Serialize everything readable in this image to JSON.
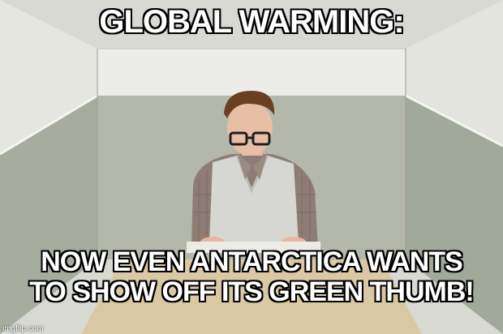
{
  "meme": {
    "top_text": "GLOBAL WARMING:",
    "bottom_text_line1": "NOW EVEN ANTARCTICA WANTS",
    "bottom_text_line2": "TO SHOW OFF ITS GREEN THUMB!",
    "watermark": "imgflip.com"
  },
  "colors": {
    "wall_upper": "#e7e7e2",
    "wall_lower": "#a9b0a2",
    "sweater_vest": "#d8d8d4",
    "shirt_plaid": "#8a7a72",
    "hair": "#6b3f22",
    "desk": "#d9c8a4"
  }
}
